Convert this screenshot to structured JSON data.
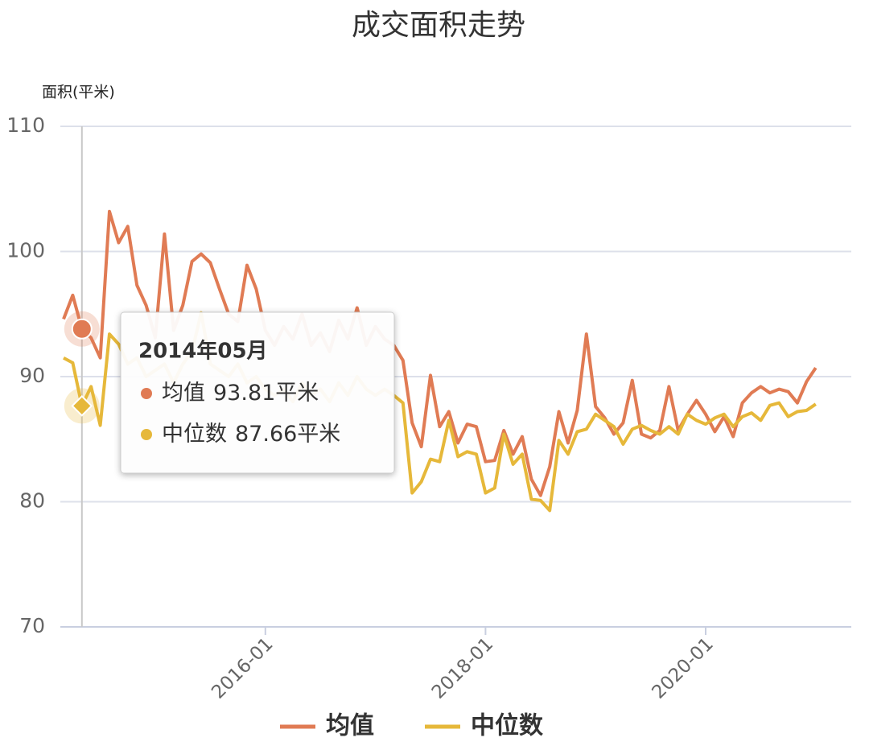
{
  "chart_data": {
    "type": "line",
    "title": "成交面积走势",
    "y_label": "面积(平米)",
    "categories": [
      "2014-03",
      "2014-04",
      "2014-05",
      "2014-06",
      "2014-07",
      "2014-08",
      "2014-09",
      "2014-10",
      "2014-11",
      "2014-12",
      "2015-01",
      "2015-02",
      "2015-03",
      "2015-04",
      "2015-05",
      "2015-06",
      "2015-07",
      "2015-08",
      "2015-09",
      "2015-10",
      "2015-11",
      "2015-12",
      "2016-01",
      "2016-02",
      "2016-03",
      "2016-04",
      "2016-05",
      "2016-06",
      "2016-07",
      "2016-08",
      "2016-09",
      "2016-10",
      "2016-11",
      "2016-12",
      "2017-01",
      "2017-02",
      "2017-03",
      "2017-04",
      "2017-05",
      "2017-06",
      "2017-07",
      "2017-08",
      "2017-09",
      "2017-10",
      "2017-11",
      "2017-12",
      "2018-01",
      "2018-02",
      "2018-03",
      "2018-04",
      "2018-05",
      "2018-06",
      "2018-07",
      "2018-08",
      "2018-09",
      "2018-10",
      "2018-11",
      "2018-12",
      "2019-01",
      "2019-02",
      "2019-03",
      "2019-04",
      "2019-05",
      "2019-06",
      "2019-07",
      "2019-08",
      "2019-09",
      "2019-10",
      "2019-11",
      "2019-12",
      "2020-01",
      "2020-02",
      "2020-03",
      "2020-04",
      "2020-05",
      "2020-06",
      "2020-07",
      "2020-08",
      "2020-09",
      "2020-10",
      "2020-11",
      "2020-12",
      "2021-01"
    ],
    "xticks": [
      "2016-01",
      "2018-01",
      "2020-01"
    ],
    "series": [
      {
        "name": "均值",
        "color": "#e07b54",
        "values": [
          94.6,
          96.5,
          93.81,
          93.1,
          91.5,
          103.2,
          100.7,
          102,
          97.3,
          95.7,
          93.1,
          101.4,
          93.7,
          95.7,
          99.2,
          99.8,
          99.1,
          97,
          95,
          94.4,
          98.9,
          97,
          93.7,
          92.5,
          94,
          93,
          95,
          92.5,
          93.5,
          92,
          94.5,
          93,
          95.5,
          92.5,
          94,
          93,
          92.5,
          91.3,
          86.3,
          84.4,
          90.1,
          86,
          87.2,
          84.7,
          86.2,
          86,
          83.2,
          83.3,
          85.7,
          83.8,
          85.2,
          81.8,
          80.5,
          82.8,
          87.2,
          84.7,
          87.3,
          93.4,
          87.6,
          86.7,
          85.4,
          86.3,
          89.7,
          85.4,
          85.1,
          85.7,
          89.2,
          85.7,
          87,
          88.1,
          87,
          85.6,
          86.8,
          85.2,
          87.9,
          88.7,
          89.2,
          88.7,
          89,
          88.8,
          87.9,
          89.6,
          90.7
        ]
      },
      {
        "name": "中位数",
        "color": "#e6b83a",
        "values": [
          91.5,
          91.1,
          87.66,
          89.2,
          86.1,
          93.4,
          92.6,
          91,
          91.5,
          90,
          90.5,
          91,
          89.5,
          91,
          92,
          95.1,
          91,
          90.5,
          90,
          91,
          89.5,
          90,
          89,
          88.5,
          89,
          88,
          89.5,
          88.5,
          89,
          88,
          89.5,
          88.5,
          90,
          89,
          88.5,
          89,
          88.5,
          87.9,
          80.7,
          81.6,
          83.4,
          83.2,
          86.5,
          83.6,
          84,
          83.8,
          80.7,
          81.1,
          85.4,
          83,
          83.8,
          80.2,
          80.1,
          79.3,
          84.9,
          83.8,
          85.6,
          85.8,
          87,
          86.5,
          86,
          84.6,
          85.8,
          86.1,
          85.7,
          85.4,
          86,
          85.4,
          87,
          86.5,
          86.2,
          86.7,
          87,
          86,
          86.8,
          87.1,
          86.5,
          87.7,
          87.9,
          86.8,
          87.2,
          87.3,
          87.8
        ]
      }
    ],
    "ylim": [
      70,
      110
    ],
    "yticks": [
      70,
      80,
      90,
      100,
      110
    ],
    "grid": true,
    "tooltip": {
      "title": "2014年05月",
      "value_labels": [
        "93.81平米",
        "87.66平米"
      ]
    }
  }
}
